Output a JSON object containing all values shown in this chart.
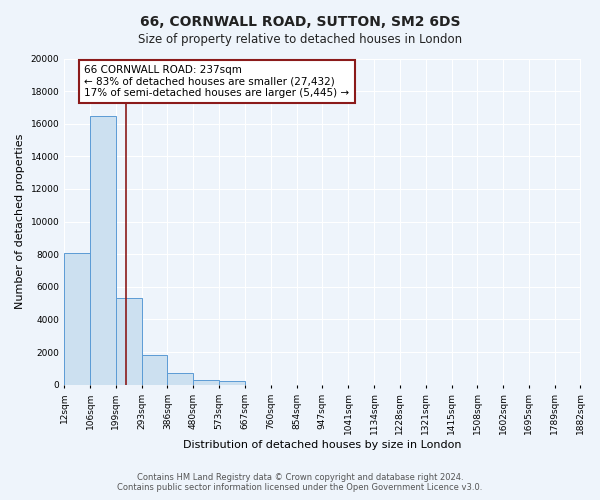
{
  "title": "66, CORNWALL ROAD, SUTTON, SM2 6DS",
  "subtitle": "Size of property relative to detached houses in London",
  "xlabel": "Distribution of detached houses by size in London",
  "ylabel": "Number of detached properties",
  "footnote1": "Contains HM Land Registry data © Crown copyright and database right 2024.",
  "footnote2": "Contains public sector information licensed under the Open Government Licence v3.0.",
  "bar_edges": [
    12,
    106,
    199,
    293,
    386,
    480,
    573,
    667,
    760,
    854,
    947,
    1041,
    1134,
    1228,
    1321,
    1415,
    1508,
    1602,
    1695,
    1789,
    1882
  ],
  "bar_heights": [
    8100,
    16500,
    5300,
    1800,
    700,
    300,
    200,
    0,
    0,
    0,
    0,
    0,
    0,
    0,
    0,
    0,
    0,
    0,
    0,
    0
  ],
  "bar_color": "#cce0f0",
  "bar_edge_color": "#5b9bd5",
  "vline_x": 237,
  "vline_color": "#8b1a1a",
  "annotation_title": "66 CORNWALL ROAD: 237sqm",
  "annotation_line1": "← 83% of detached houses are smaller (27,432)",
  "annotation_line2": "17% of semi-detached houses are larger (5,445) →",
  "annotation_box_color": "#ffffff",
  "annotation_box_edge": "#8b1a1a",
  "ylim": [
    0,
    20000
  ],
  "yticks": [
    0,
    2000,
    4000,
    6000,
    8000,
    10000,
    12000,
    14000,
    16000,
    18000,
    20000
  ],
  "xtick_labels": [
    "12sqm",
    "106sqm",
    "199sqm",
    "293sqm",
    "386sqm",
    "480sqm",
    "573sqm",
    "667sqm",
    "760sqm",
    "854sqm",
    "947sqm",
    "1041sqm",
    "1134sqm",
    "1228sqm",
    "1321sqm",
    "1415sqm",
    "1508sqm",
    "1602sqm",
    "1695sqm",
    "1789sqm",
    "1882sqm"
  ],
  "bg_color": "#eef4fb",
  "grid_color": "#ffffff",
  "title_fontsize": 10,
  "subtitle_fontsize": 8.5,
  "axis_label_fontsize": 8,
  "tick_fontsize": 6.5,
  "annotation_fontsize": 7.5,
  "footnote_fontsize": 6.0
}
